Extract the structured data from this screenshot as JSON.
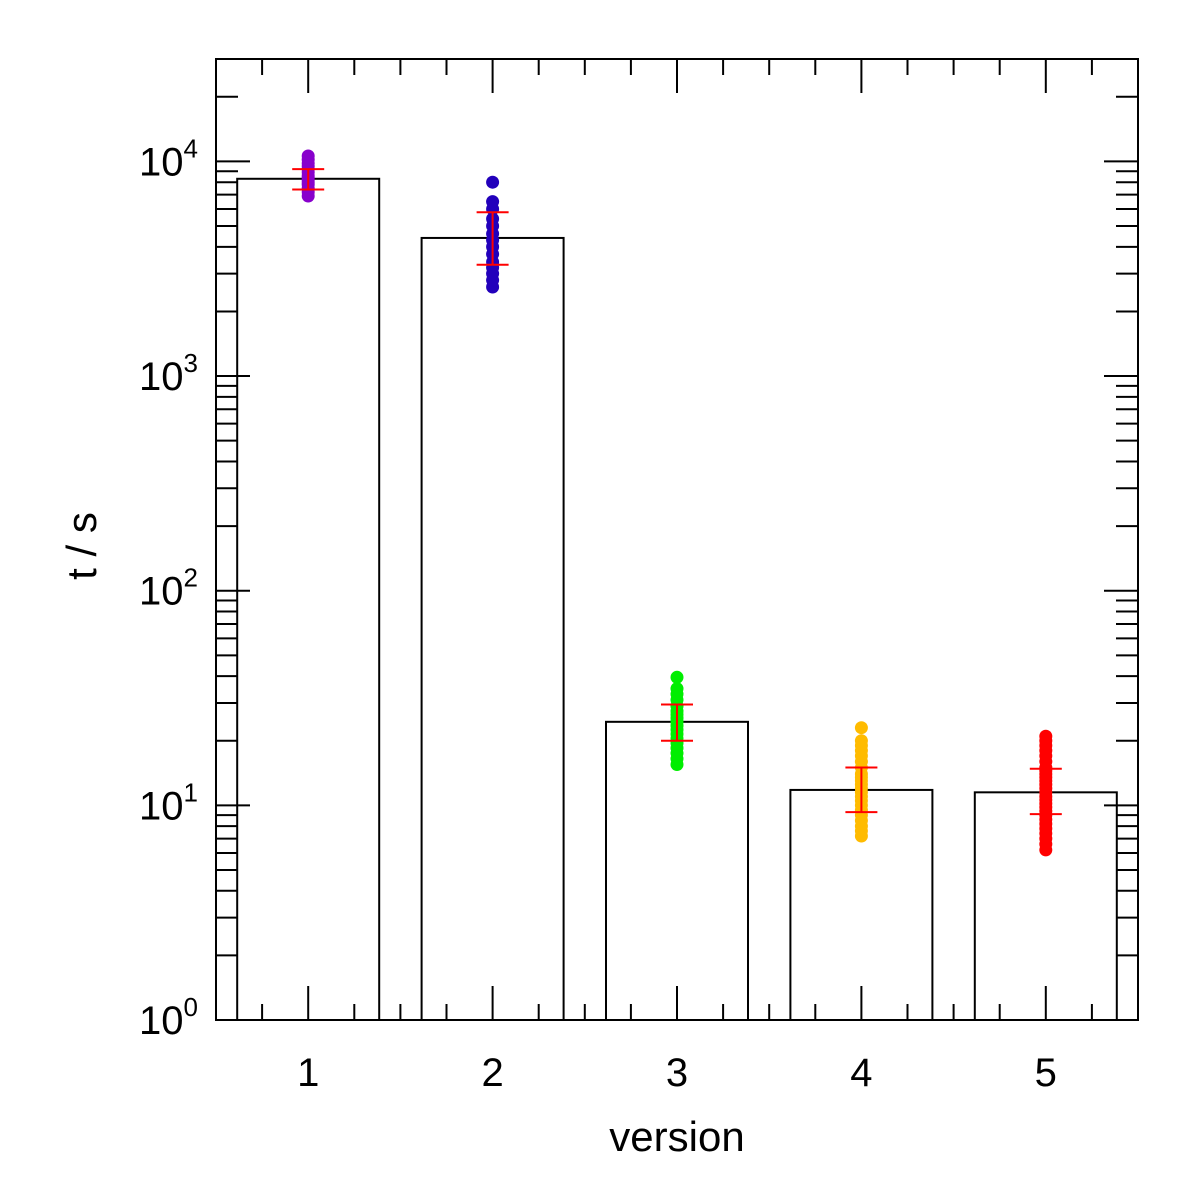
{
  "chart_data": {
    "type": "bar",
    "title": "",
    "xlabel": "version",
    "ylabel": "t / s",
    "y_scale": "log",
    "ylim": [
      1,
      30000
    ],
    "xlim": [
      0.5,
      5.5
    ],
    "grid": false,
    "categories": [
      "1",
      "2",
      "3",
      "4",
      "5"
    ],
    "y_ticks": [
      {
        "base": "10",
        "exp": "0",
        "value": 1
      },
      {
        "base": "10",
        "exp": "1",
        "value": 10
      },
      {
        "base": "10",
        "exp": "2",
        "value": 100
      },
      {
        "base": "10",
        "exp": "3",
        "value": 1000
      },
      {
        "base": "10",
        "exp": "4",
        "value": 10000
      }
    ],
    "bars": [
      {
        "x": 1,
        "value": 8300,
        "err_low": 7400,
        "err_high": 9200,
        "point_color": "#8800cc",
        "points": [
          6900,
          7200,
          7500,
          7800,
          8000,
          8200,
          8400,
          8600,
          8900,
          9200,
          9500,
          9800,
          10200,
          10600
        ]
      },
      {
        "x": 2,
        "value": 4400,
        "err_low": 3300,
        "err_high": 5800,
        "point_color": "#2200bb",
        "points": [
          2600,
          2800,
          3000,
          3200,
          3400,
          3700,
          4000,
          4300,
          4600,
          5000,
          5400,
          6000,
          6500,
          8000
        ]
      },
      {
        "x": 3,
        "value": 24.5,
        "err_low": 20,
        "err_high": 29.5,
        "point_color": "#00ee00",
        "points": [
          15.5,
          16.5,
          17.5,
          18.5,
          19.5,
          20.5,
          21.5,
          22.5,
          23.5,
          24.5,
          25.5,
          26.5,
          27.5,
          29,
          31,
          33,
          35,
          39.5
        ]
      },
      {
        "x": 4,
        "value": 11.8,
        "err_low": 9.3,
        "err_high": 15,
        "point_color": "#ffbb00",
        "points": [
          7.2,
          7.6,
          8,
          8.5,
          9,
          9.5,
          10,
          10.5,
          11,
          11.5,
          12,
          12.5,
          13,
          13.5,
          14,
          15,
          16,
          17,
          18,
          19,
          20,
          23
        ]
      },
      {
        "x": 5,
        "value": 11.5,
        "err_low": 9.1,
        "err_high": 14.8,
        "point_color": "#ff0000",
        "points": [
          6.2,
          6.6,
          7,
          7.4,
          7.8,
          8.2,
          8.6,
          9,
          9.4,
          9.8,
          10.2,
          10.6,
          11,
          11.5,
          12,
          12.5,
          13,
          13.5,
          14,
          14.5,
          15,
          16,
          17,
          18,
          19,
          20,
          21
        ]
      }
    ],
    "error_bar_color": "#ff0000",
    "bar_fill": "#ffffff",
    "bar_edge": "#000000"
  }
}
